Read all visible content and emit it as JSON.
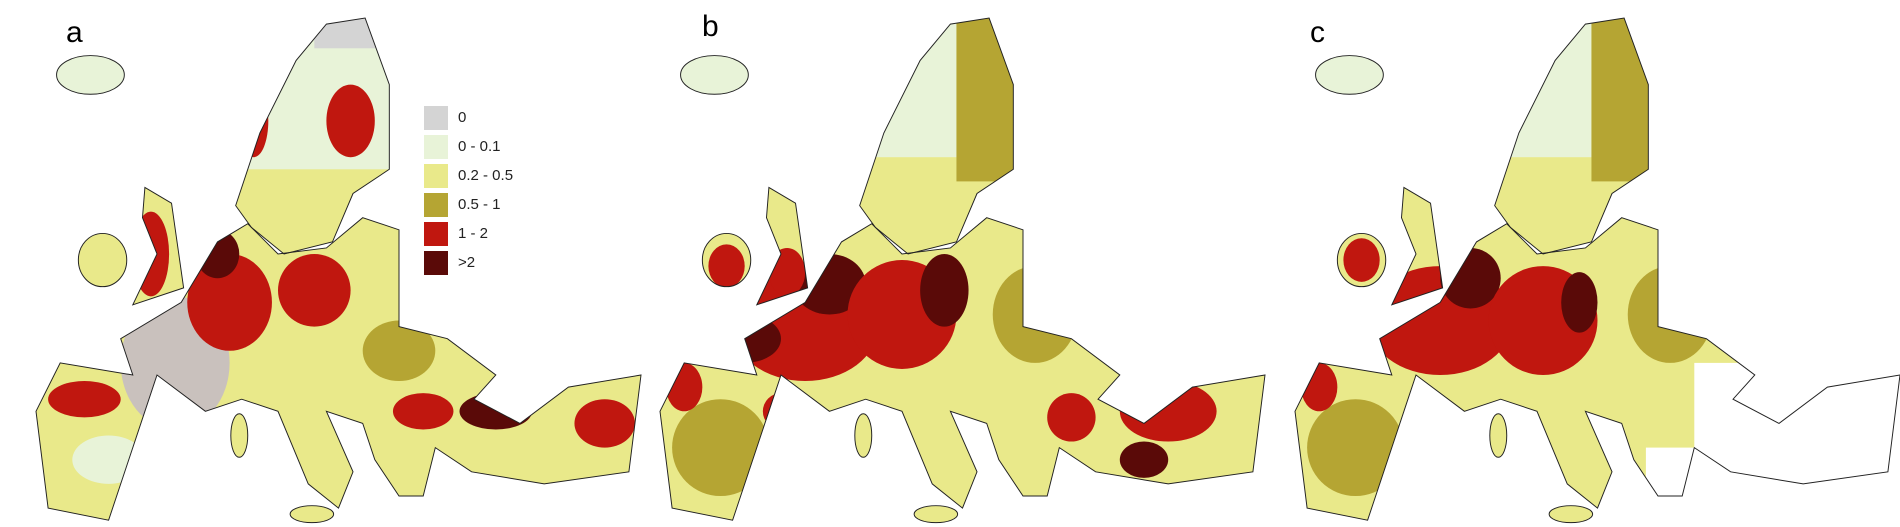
{
  "panels": [
    {
      "label": "a"
    },
    {
      "label": "b"
    },
    {
      "label": "c"
    }
  ],
  "legend": {
    "items": [
      {
        "label": "0",
        "color": "#d4d4d4"
      },
      {
        "label": "0 - 0.1",
        "color": "#e8f3d8"
      },
      {
        "label": "0.2 - 0.5",
        "color": "#e9e98a"
      },
      {
        "label": "0.5 - 1",
        "color": "#b5a533"
      },
      {
        "label": "1 - 2",
        "color": "#c0170f"
      },
      {
        "label": ">2",
        "color": "#5a0a08"
      }
    ]
  }
}
